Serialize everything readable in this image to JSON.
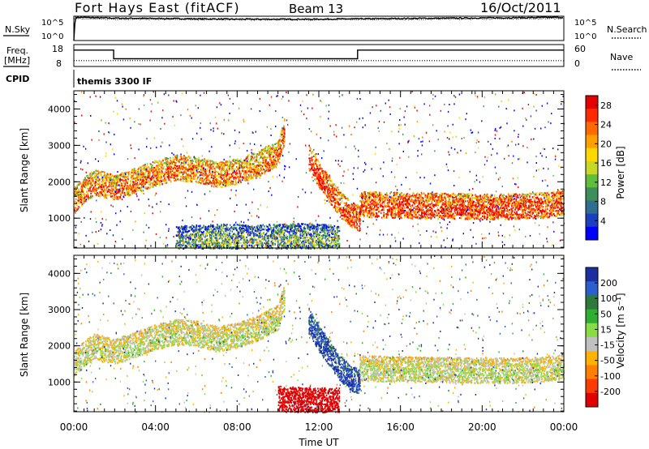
{
  "header": {
    "station": "Fort Hays East (fitACF)",
    "beam": "Beam 13",
    "date": "16/Oct/2011"
  },
  "top_panels": {
    "nsky_label": "N.Sky",
    "nsky_ticks": [
      "10^5",
      "10^0"
    ],
    "nsearch_label": "N.Search",
    "nsearch_ticks": [
      "10^5",
      "10^0"
    ],
    "freq_label": "Freq.",
    "freq_unit": "[MHz]",
    "freq_ticks": [
      "18",
      "8"
    ],
    "nave_label": "Nave",
    "nave_ticks": [
      "60",
      "0"
    ],
    "cpid_label": "CPID",
    "cpid_value": "themis 3300 IF"
  },
  "chart_data": [
    {
      "type": "line",
      "panel": "noise",
      "x_unit": "hours UT",
      "xlim": [
        0,
        24
      ],
      "ylog": true,
      "ylim": [
        1,
        100000
      ],
      "series": [
        {
          "name": "N.Sky",
          "style": "solid",
          "x": [
            0,
            0.05,
            0.1,
            2,
            4,
            6,
            8,
            10,
            12,
            14,
            16,
            18,
            20,
            22,
            24
          ],
          "y": [
            1,
            3000,
            60000,
            40000,
            35000,
            30000,
            25000,
            25000,
            25000,
            30000,
            35000,
            40000,
            45000,
            50000,
            60000
          ]
        },
        {
          "name": "N.Search",
          "style": "dotted",
          "x": [
            0,
            2,
            4,
            6,
            8,
            10,
            12,
            14,
            16,
            18,
            20,
            22,
            24
          ],
          "y": [
            30000,
            25000,
            22000,
            20000,
            18000,
            18000,
            18000,
            20000,
            22000,
            25000,
            28000,
            30000,
            35000
          ]
        }
      ]
    },
    {
      "type": "line",
      "panel": "frequency",
      "x_unit": "hours UT",
      "xlim": [
        0,
        24
      ],
      "ylim": [
        8,
        18
      ],
      "y2lim": [
        0,
        60
      ],
      "series": [
        {
          "name": "Freq.",
          "style": "solid",
          "x": [
            0,
            1.95,
            1.95,
            13.9,
            13.9,
            24
          ],
          "y": [
            15.5,
            15.5,
            11.5,
            11.5,
            15.5,
            15.5
          ]
        },
        {
          "name": "Nave",
          "style": "dotted",
          "axis": "right",
          "x": [
            0,
            24
          ],
          "y": [
            16,
            16
          ]
        }
      ]
    },
    {
      "type": "heatmap",
      "panel": "power",
      "xlabel": "",
      "ylabel": "Slant Range [km]",
      "xlim": [
        0,
        24
      ],
      "ylim": [
        180,
        4500
      ],
      "yticks": [
        1000,
        2000,
        3000,
        4000
      ],
      "colorbar": {
        "label": "Power [dB]",
        "ticks": [
          4,
          8,
          12,
          16,
          20,
          24,
          28
        ],
        "range": [
          0,
          30
        ],
        "colors": [
          "#0000ff",
          "#1a3fc0",
          "#2e6e8e",
          "#3c8f5a",
          "#5fbf3a",
          "#c8d828",
          "#ffd800",
          "#ffa000",
          "#ff6a00",
          "#ff2a00",
          "#e60000"
        ]
      },
      "bands": [
        {
          "desc": "main scatter band",
          "x": [
            0,
            0.5,
            1,
            2,
            3,
            4,
            5,
            6,
            7,
            8,
            9,
            10,
            10.3
          ],
          "y": [
            1400,
            1700,
            1900,
            1750,
            1950,
            2150,
            2300,
            2250,
            2100,
            2200,
            2400,
            2700,
            3300
          ],
          "value": 24
        },
        {
          "desc": "evening recovery band",
          "x": [
            11.5,
            12,
            12.5,
            13,
            13.5,
            14
          ],
          "y": [
            2600,
            2100,
            1700,
            1300,
            1050,
            900
          ],
          "value": 28
        },
        {
          "desc": "post-14 UT band",
          "x": [
            14,
            15,
            16,
            17,
            18,
            19,
            20,
            21,
            22,
            23,
            24
          ],
          "y": [
            1300,
            1280,
            1270,
            1250,
            1250,
            1240,
            1230,
            1230,
            1240,
            1270,
            1350
          ],
          "value": 28
        },
        {
          "desc": "near-range scatter",
          "x": [
            5,
            7,
            9,
            11,
            12,
            13
          ],
          "y": [
            350,
            400,
            380,
            420,
            400,
            380
          ],
          "value": 12
        }
      ]
    },
    {
      "type": "heatmap",
      "panel": "velocity",
      "xlabel": "Time UT",
      "ylabel": "Slant Range [km]",
      "xlim": [
        0,
        24
      ],
      "ylim": [
        180,
        4500
      ],
      "yticks": [
        1000,
        2000,
        3000,
        4000
      ],
      "xticks": [
        "00:00",
        "04:00",
        "08:00",
        "12:00",
        "16:00",
        "20:00",
        "00:00"
      ],
      "colorbar": {
        "label": "Velocity [m s⁻¹]",
        "ticks": [
          200,
          100,
          50,
          15,
          -15,
          -50,
          -100,
          -200
        ],
        "colors": [
          "#1b2fa0",
          "#2b5fd0",
          "#2d7a3a",
          "#2faf2f",
          "#88dd44",
          "#c0c0c0",
          "#ffb300",
          "#ff8000",
          "#ff3c00",
          "#e00000"
        ]
      },
      "bands": [
        {
          "desc": "ground scatter (low velocity)",
          "x": [
            0,
            0.5,
            1,
            2,
            3,
            4,
            5,
            6,
            7,
            8,
            9,
            10,
            10.3
          ],
          "y": [
            1400,
            1700,
            1900,
            1750,
            1950,
            2150,
            2300,
            2250,
            2100,
            2200,
            2400,
            2700,
            3300
          ],
          "value": 0
        },
        {
          "desc": "positive velocity streak",
          "x": [
            11.5,
            12,
            12.5,
            13,
            13.5,
            14
          ],
          "y": [
            2600,
            2100,
            1700,
            1300,
            1050,
            900
          ],
          "value": 30
        },
        {
          "desc": "post-14 UT ground scatter",
          "x": [
            14,
            15,
            16,
            17,
            18,
            19,
            20,
            21,
            22,
            23,
            24
          ],
          "y": [
            1300,
            1280,
            1270,
            1250,
            1250,
            1240,
            1230,
            1230,
            1240,
            1270,
            1350
          ],
          "value": 0
        },
        {
          "desc": "near-range negative velocity",
          "x": [
            10,
            11,
            12,
            13
          ],
          "y": [
            450,
            420,
            400,
            400
          ],
          "value": -40
        }
      ]
    }
  ]
}
